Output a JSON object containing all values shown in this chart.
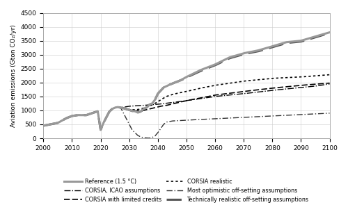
{
  "title": "",
  "ylabel": "Aviation emissions (Gton CO₂/yr)",
  "xlabel": "",
  "xlim": [
    2000,
    2100
  ],
  "ylim": [
    0,
    4500
  ],
  "yticks": [
    0,
    500,
    1000,
    1500,
    2000,
    2500,
    3000,
    3500,
    4000,
    4500
  ],
  "xticks": [
    2000,
    2010,
    2020,
    2030,
    2040,
    2050,
    2060,
    2070,
    2080,
    2090,
    2100
  ],
  "legend_entries": [
    "Reference (1.5 °C)",
    "CORSIA, ICAO assumptions",
    "CORSIA with limited credits",
    "CORSIA realistic",
    "Most optimistic off-setting assumptions",
    "Technically realistic off-setting assumptions"
  ]
}
